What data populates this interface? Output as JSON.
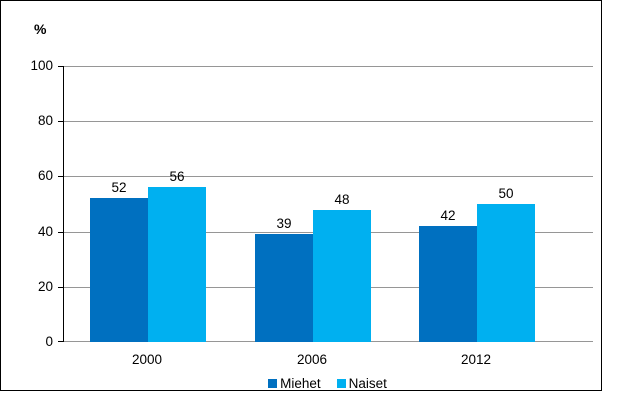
{
  "figure": {
    "background": "#ffffff",
    "frame_border_color": "#000000",
    "gridline_color": "#969696",
    "axis_color": "#000000",
    "text_color": "#000000"
  },
  "chart_data": {
    "type": "bar",
    "title": "",
    "ylabel": "%",
    "categories": [
      "2000",
      "2006",
      "2012"
    ],
    "series": [
      {
        "name": "Miehet",
        "color": "#0070C0",
        "values": [
          52,
          39,
          42
        ]
      },
      {
        "name": "Naiset",
        "color": "#00B0F0",
        "values": [
          56,
          48,
          50
        ]
      }
    ],
    "ylim": [
      0,
      100
    ],
    "yticks": [
      0,
      20,
      40,
      60,
      80,
      100
    ],
    "grid": true,
    "value_labels": true,
    "legend_position": "bottom"
  }
}
